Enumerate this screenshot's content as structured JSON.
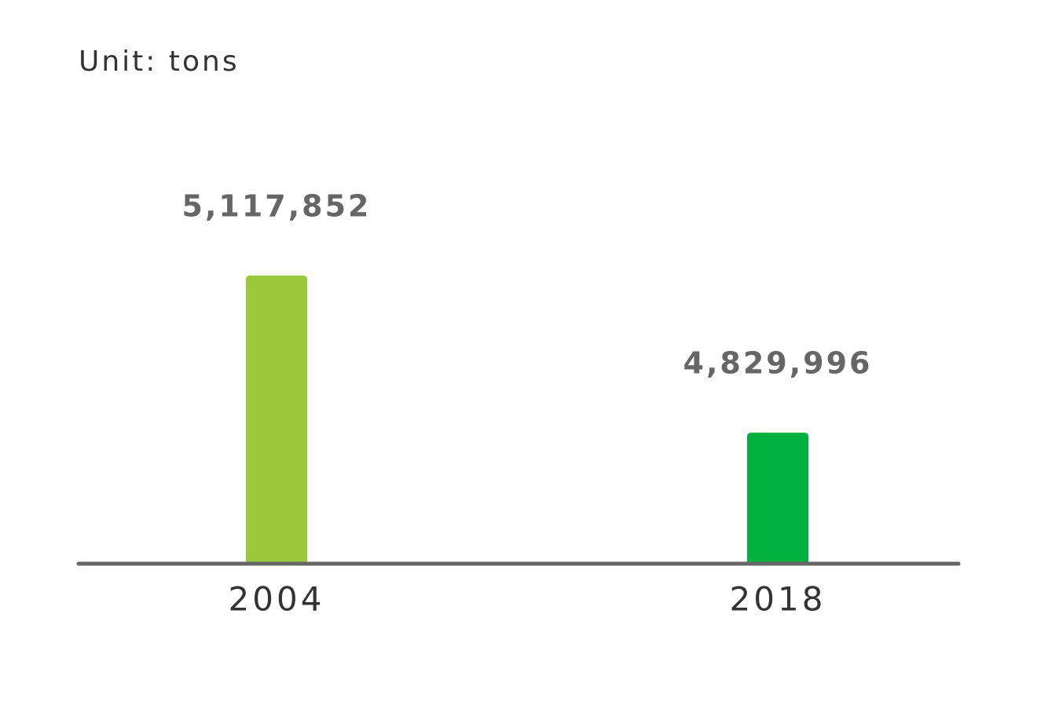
{
  "chart_data": {
    "type": "bar",
    "unit": "Unit: tons",
    "categories": [
      "2004",
      "2018"
    ],
    "values": [
      5117852,
      4829996
    ],
    "value_labels": [
      "5,117,852",
      "4,829,996"
    ],
    "colors": [
      "#9bc83a",
      "#00b140"
    ],
    "ylim": [
      4590000,
      5335000
    ]
  }
}
